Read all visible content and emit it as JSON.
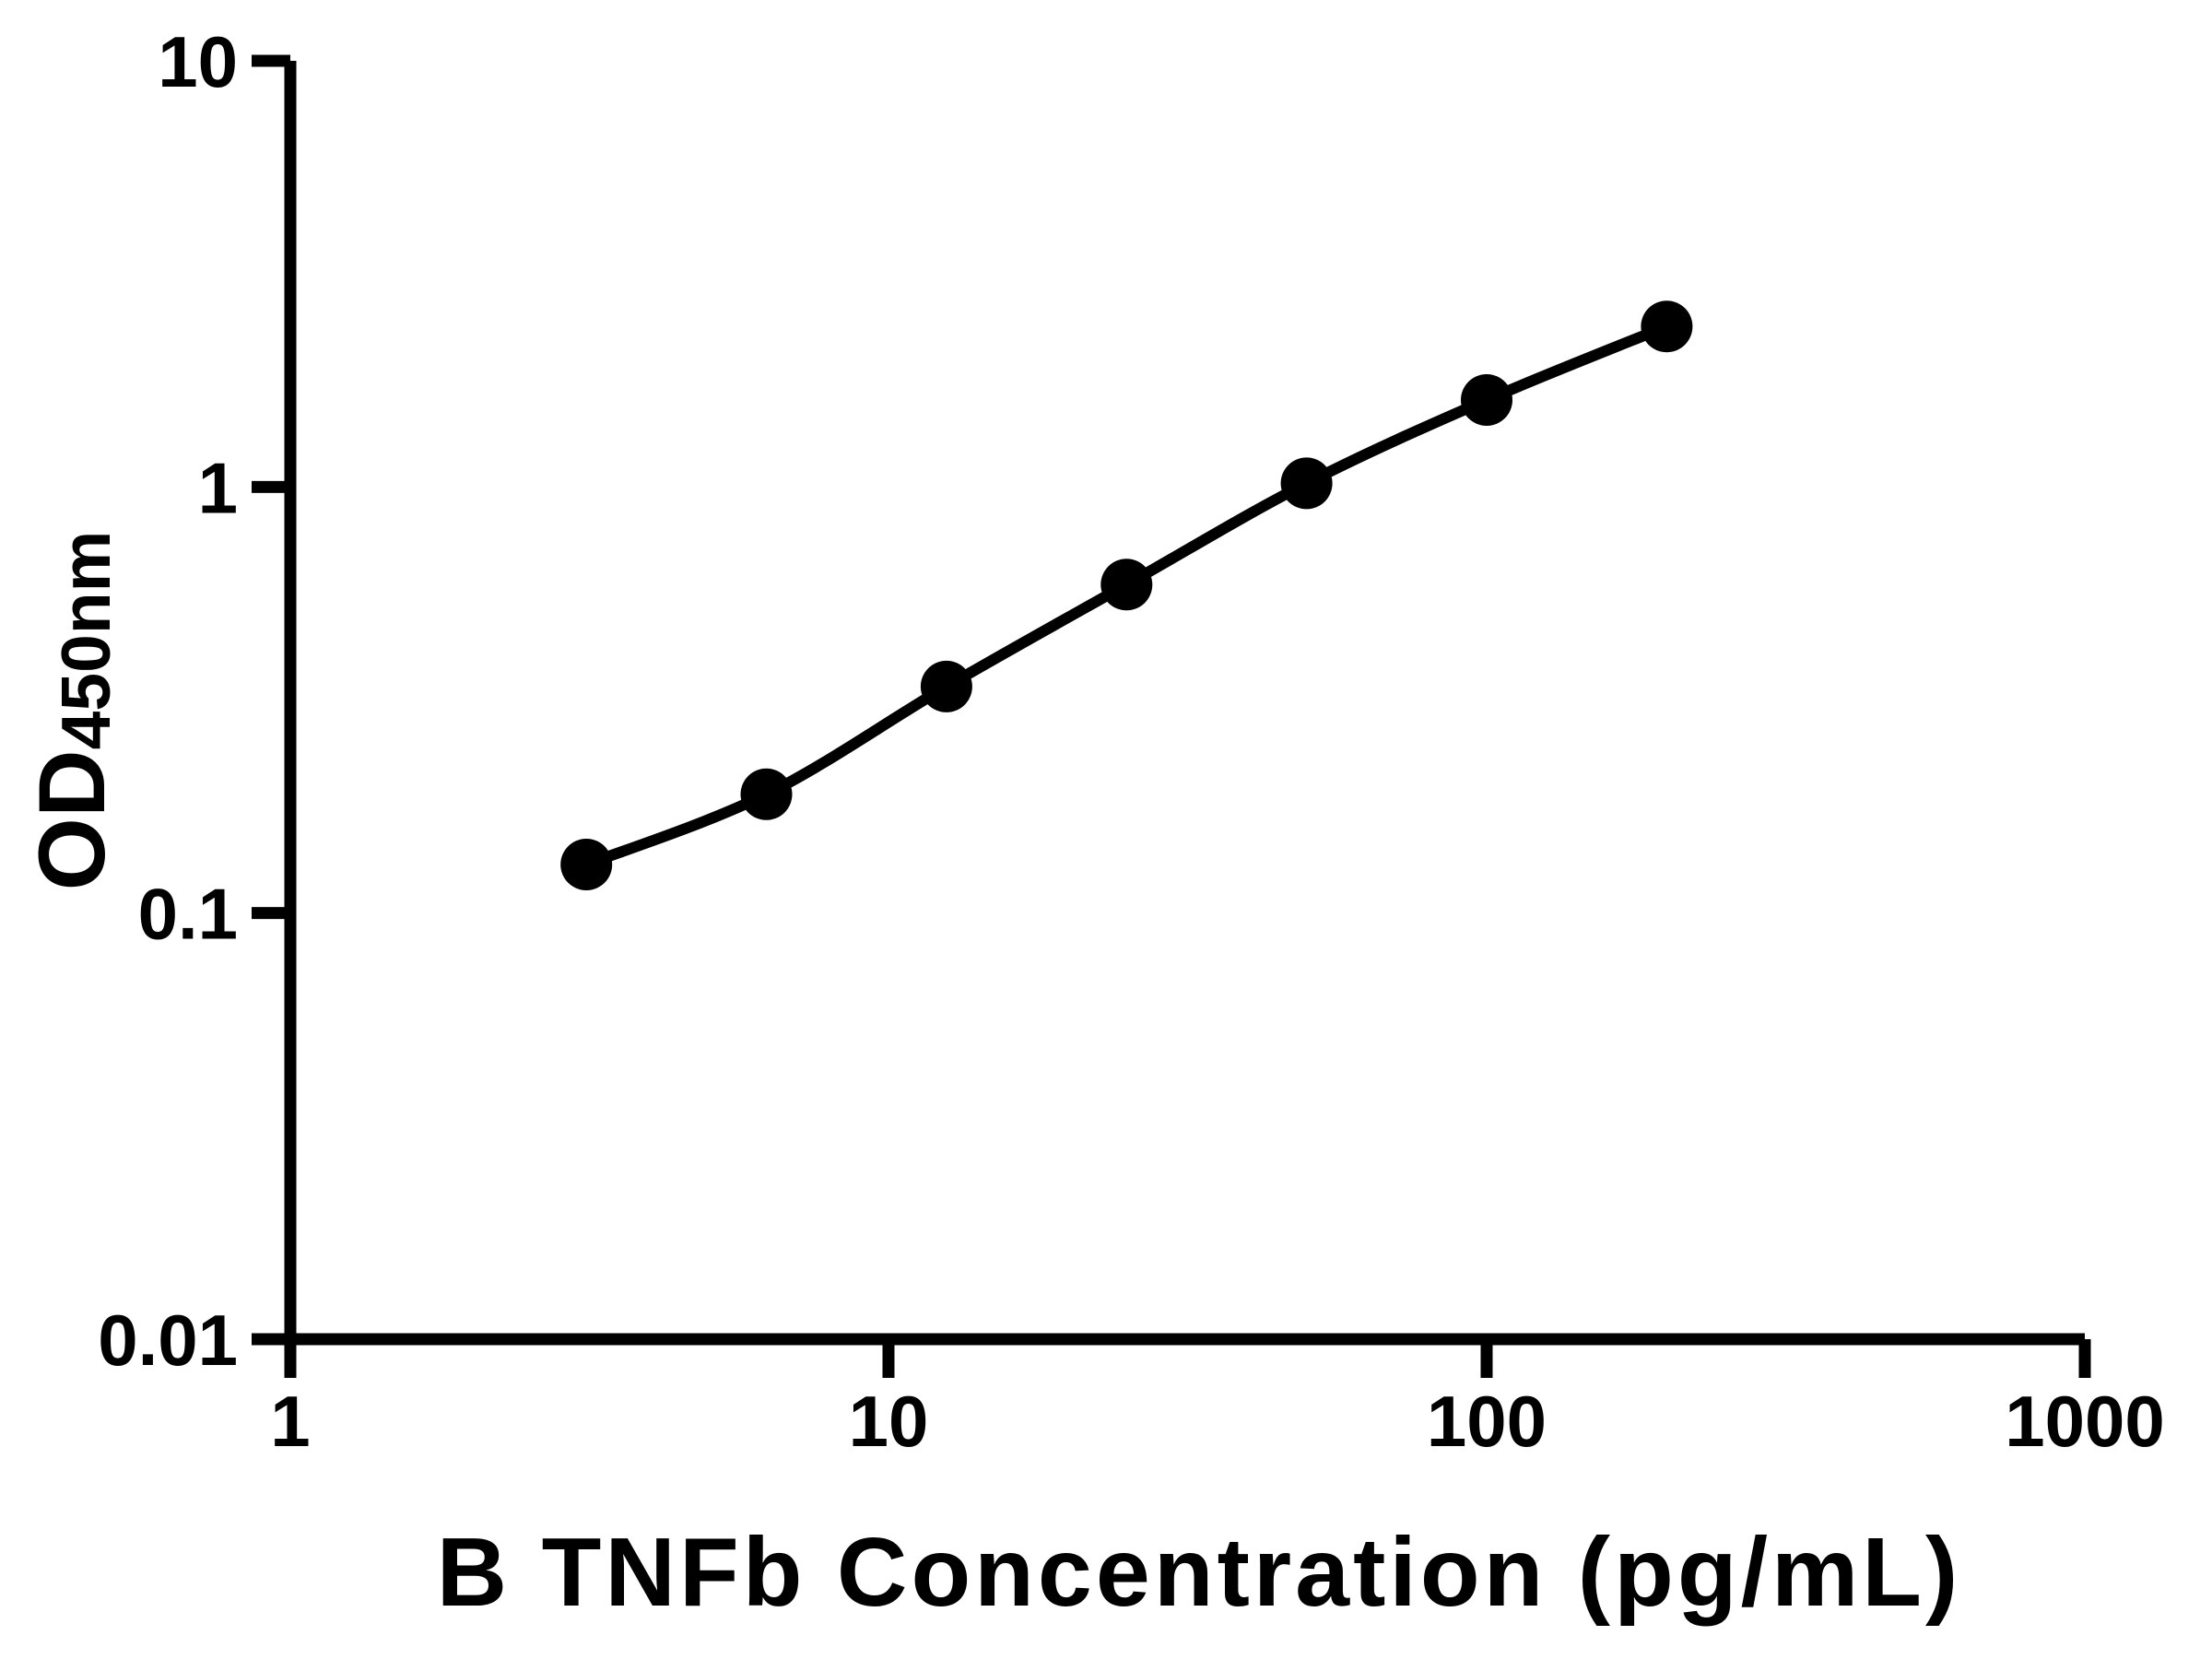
{
  "chart_data": {
    "type": "scatter",
    "subtype": "line-through-points",
    "title": "",
    "xlabel": "B TNFb Concentration (pg/mL)",
    "ylabel": "OD450nm",
    "ylabel_parts": {
      "main": "OD",
      "sub": "450nm"
    },
    "x_scale": "log",
    "y_scale": "log",
    "xlim": [
      1,
      1000
    ],
    "ylim": [
      0.01,
      10
    ],
    "x_ticks": [
      1,
      10,
      100,
      1000
    ],
    "x_tick_labels": [
      "1",
      "10",
      "100",
      "1000"
    ],
    "y_ticks": [
      0.01,
      0.1,
      1,
      10
    ],
    "y_tick_labels": [
      "0.01",
      "0.1",
      "1",
      "10"
    ],
    "grid": false,
    "legend_position": "none",
    "color": "#000000",
    "background": "#ffffff",
    "series": [
      {
        "marker": "filled-circle",
        "line": "smooth",
        "x": [
          3.125,
          6.25,
          12.5,
          25,
          50,
          100,
          200
        ],
        "y": [
          0.13,
          0.19,
          0.34,
          0.59,
          1.02,
          1.6,
          2.38
        ]
      }
    ]
  }
}
